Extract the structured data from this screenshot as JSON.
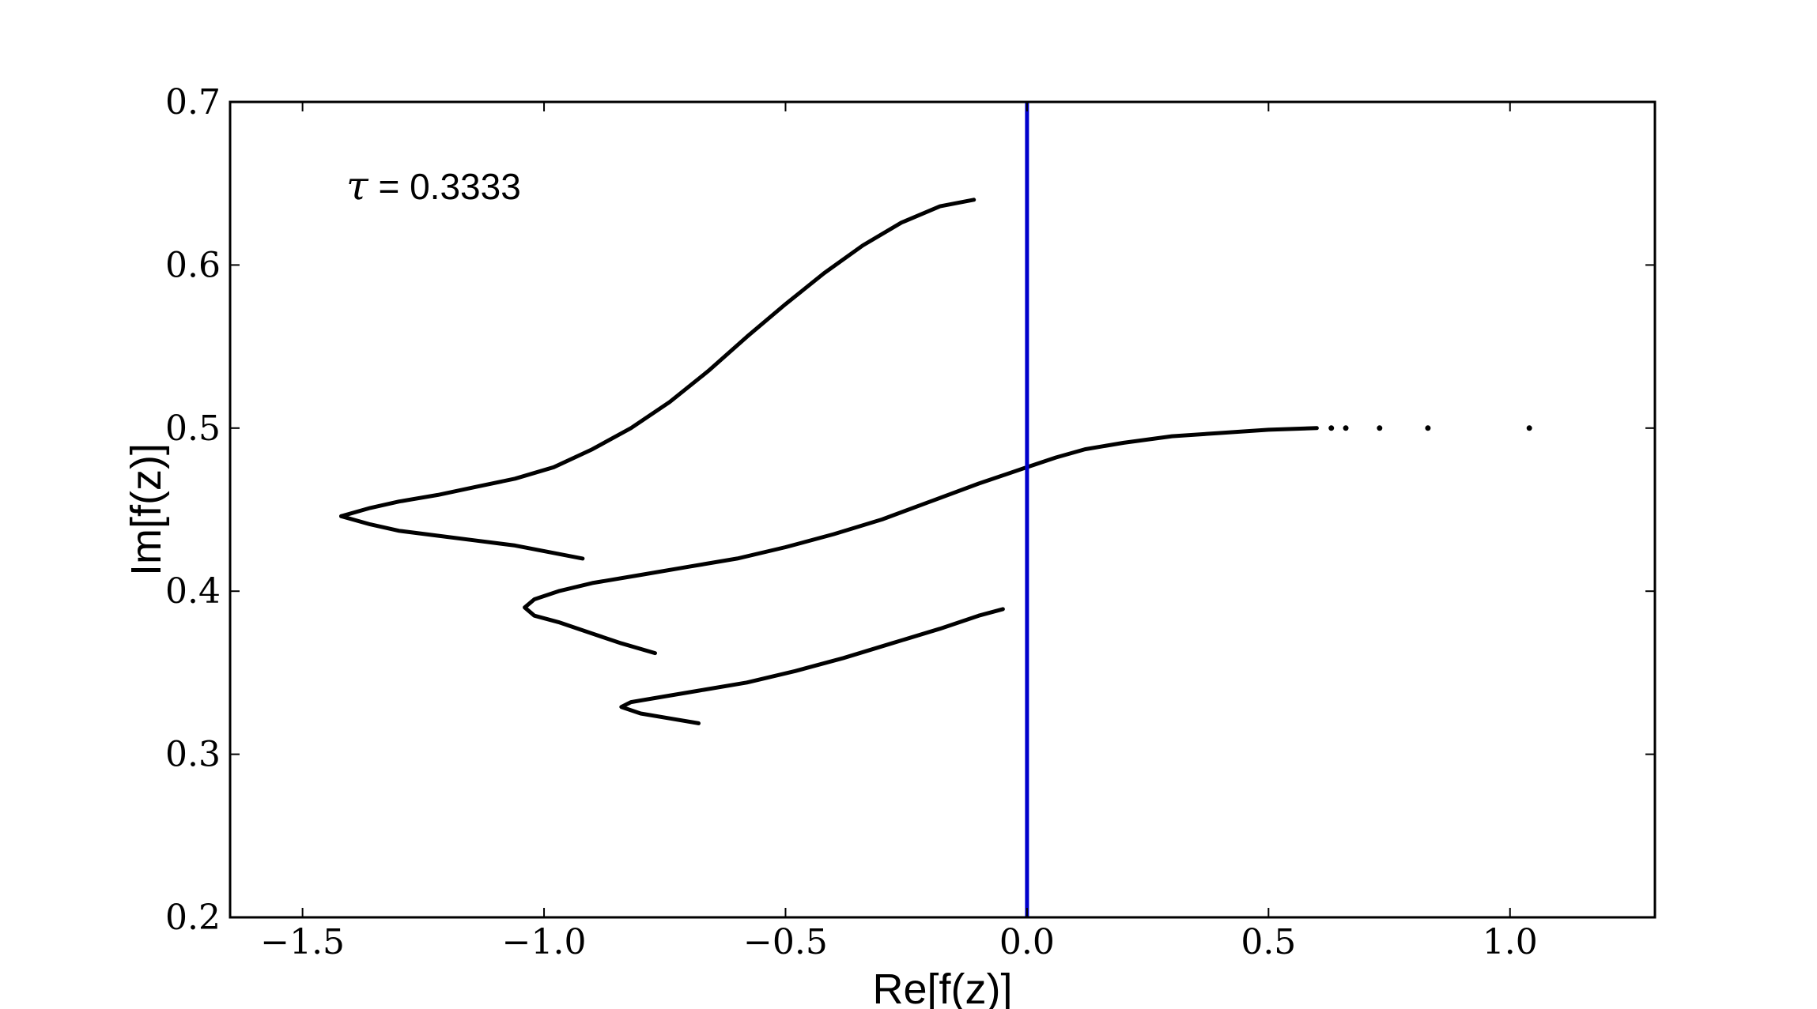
{
  "chart_data": {
    "type": "scatter",
    "title": "",
    "xlabel": "Re[f(z)]",
    "ylabel": "Im[f(z)]",
    "xlim": [
      -1.65,
      1.3
    ],
    "ylim": [
      0.2,
      0.7
    ],
    "xticks": [
      -1.5,
      -1.0,
      -0.5,
      0.0,
      0.5,
      1.0
    ],
    "xtick_labels": [
      "−1.5",
      "−1.0",
      "−0.5",
      "0.0",
      "0.5",
      "1.0"
    ],
    "yticks": [
      0.2,
      0.3,
      0.4,
      0.5,
      0.6,
      0.7
    ],
    "ytick_labels": [
      "0.2",
      "0.3",
      "0.4",
      "0.5",
      "0.6",
      "0.7"
    ],
    "grid": false,
    "legend": "none",
    "annotation": {
      "symbol": "τ",
      "text": " = 0.3333"
    },
    "vline": {
      "x": 0.0,
      "color": "#0000cc"
    },
    "series_color": "#000000",
    "series": [
      {
        "points": [
          [
            -1.42,
            0.446
          ],
          [
            -1.36,
            0.451
          ],
          [
            -1.3,
            0.455
          ],
          [
            -1.22,
            0.459
          ],
          [
            -1.14,
            0.464
          ],
          [
            -1.06,
            0.469
          ],
          [
            -0.98,
            0.476
          ],
          [
            -0.9,
            0.487
          ],
          [
            -0.82,
            0.5
          ],
          [
            -0.74,
            0.516
          ],
          [
            -0.66,
            0.535
          ],
          [
            -0.58,
            0.556
          ],
          [
            -0.5,
            0.576
          ],
          [
            -0.42,
            0.595
          ],
          [
            -0.34,
            0.612
          ],
          [
            -0.26,
            0.626
          ],
          [
            -0.18,
            0.636
          ],
          [
            -0.11,
            0.64
          ]
        ]
      },
      {
        "points": [
          [
            -1.42,
            0.446
          ],
          [
            -1.36,
            0.441
          ],
          [
            -1.3,
            0.437
          ],
          [
            -1.22,
            0.434
          ],
          [
            -1.14,
            0.431
          ],
          [
            -1.06,
            0.428
          ],
          [
            -0.99,
            0.424
          ],
          [
            -0.92,
            0.42
          ]
        ]
      },
      {
        "points": [
          [
            -0.77,
            0.362
          ],
          [
            -0.84,
            0.368
          ],
          [
            -0.9,
            0.374
          ],
          [
            -0.97,
            0.381
          ],
          [
            -1.02,
            0.385
          ],
          [
            -1.04,
            0.39
          ],
          [
            -1.02,
            0.395
          ],
          [
            -0.97,
            0.4
          ],
          [
            -0.9,
            0.405
          ],
          [
            -0.8,
            0.41
          ],
          [
            -0.7,
            0.415
          ],
          [
            -0.6,
            0.42
          ],
          [
            -0.5,
            0.427
          ],
          [
            -0.4,
            0.435
          ],
          [
            -0.3,
            0.444
          ],
          [
            -0.2,
            0.455
          ],
          [
            -0.1,
            0.466
          ],
          [
            0.0,
            0.476
          ],
          [
            0.06,
            0.482
          ],
          [
            0.12,
            0.487
          ],
          [
            0.2,
            0.491
          ],
          [
            0.3,
            0.495
          ],
          [
            0.4,
            0.497
          ],
          [
            0.5,
            0.499
          ],
          [
            0.6,
            0.5
          ]
        ]
      },
      {
        "points": [
          [
            -0.68,
            0.319
          ],
          [
            -0.74,
            0.322
          ],
          [
            -0.8,
            0.325
          ],
          [
            -0.84,
            0.329
          ],
          [
            -0.82,
            0.332
          ],
          [
            -0.76,
            0.335
          ],
          [
            -0.68,
            0.339
          ],
          [
            -0.58,
            0.344
          ],
          [
            -0.48,
            0.351
          ],
          [
            -0.38,
            0.359
          ],
          [
            -0.28,
            0.368
          ],
          [
            -0.18,
            0.377
          ],
          [
            -0.1,
            0.385
          ],
          [
            -0.05,
            0.389
          ]
        ]
      },
      {
        "style": "dots",
        "points": [
          [
            0.63,
            0.5
          ],
          [
            0.66,
            0.5
          ],
          [
            0.73,
            0.5
          ],
          [
            0.83,
            0.5
          ],
          [
            1.04,
            0.5
          ]
        ]
      }
    ]
  }
}
